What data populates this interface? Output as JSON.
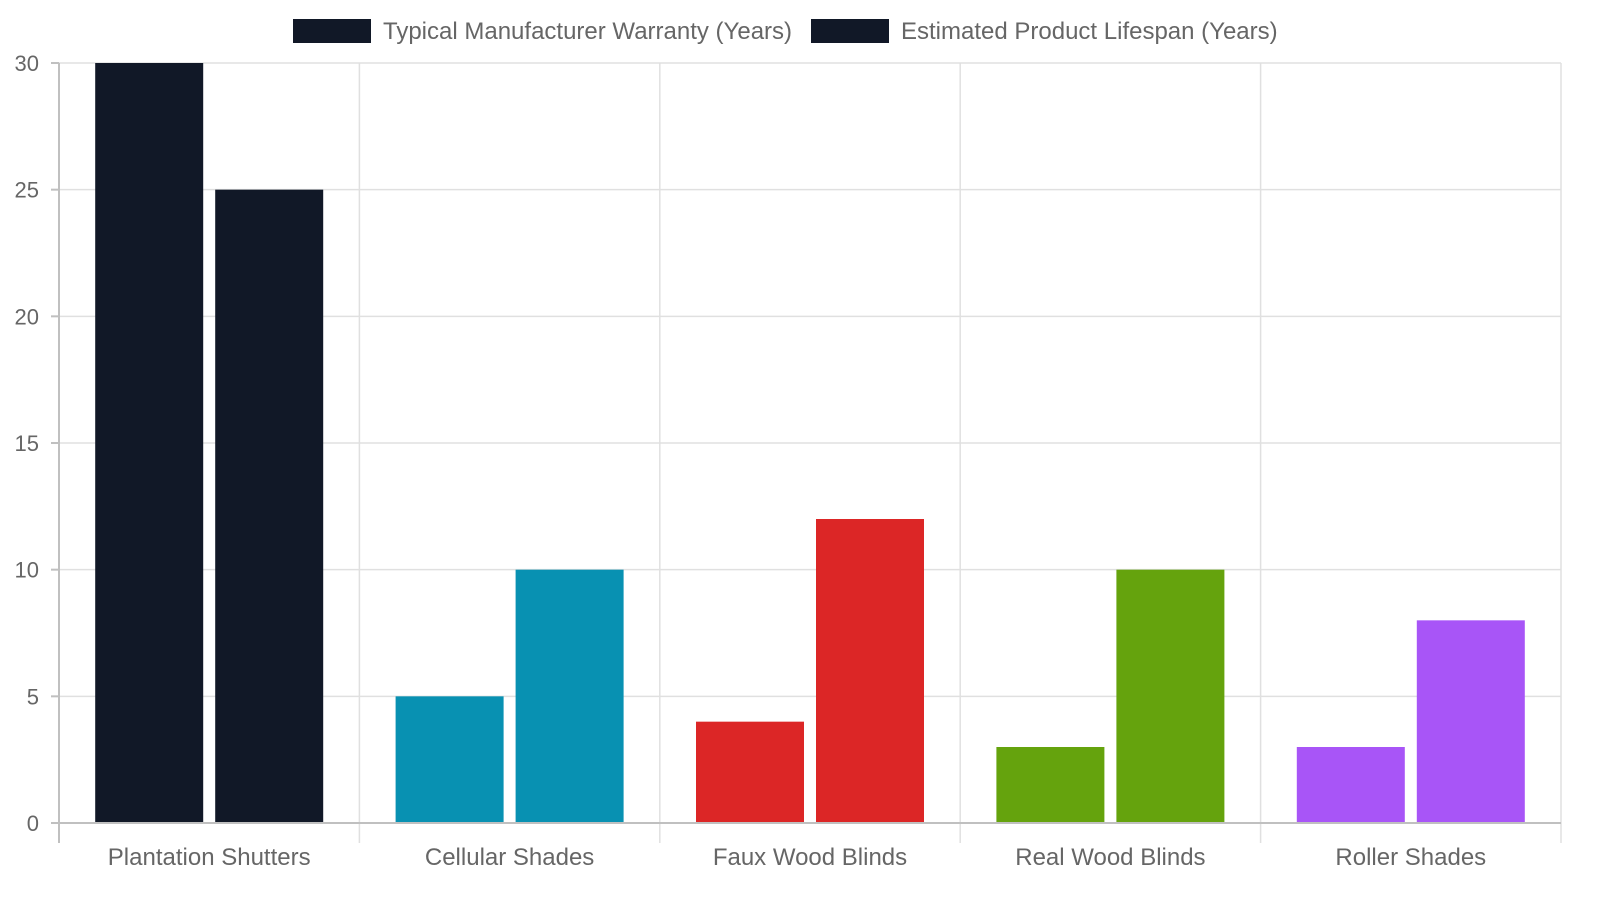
{
  "chart_data": {
    "type": "bar",
    "categories": [
      "Plantation Shutters",
      "Cellular Shades",
      "Faux Wood Blinds",
      "Real Wood Blinds",
      "Roller Shades"
    ],
    "series": [
      {
        "name": "Typical Manufacturer Warranty (Years)",
        "values": [
          30,
          5,
          4,
          3,
          3
        ]
      },
      {
        "name": "Estimated Product Lifespan (Years)",
        "values": [
          25,
          10,
          12,
          10,
          8
        ]
      }
    ],
    "category_colors": [
      "#111827",
      "#0891b2",
      "#dc2626",
      "#65a30d",
      "#a855f7"
    ],
    "legend_color": "#111827",
    "legend_position": "top",
    "ylim": [
      0,
      30
    ],
    "yticks": [
      0,
      5,
      10,
      15,
      20,
      25,
      30
    ],
    "grid": true
  }
}
